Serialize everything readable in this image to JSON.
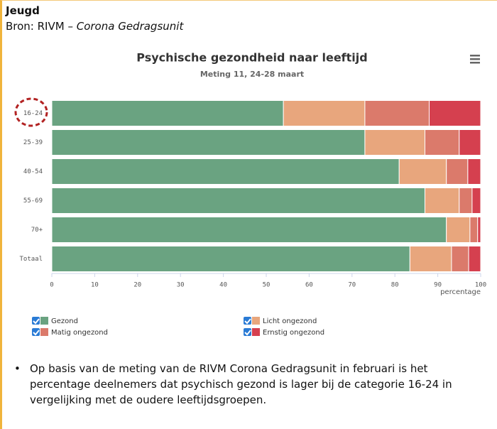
{
  "header": {
    "title": "Jeugd",
    "source": "Bron: RIVM –",
    "source_emphasis": "Corona Gedragsunit"
  },
  "chart_data": {
    "type": "bar",
    "orientation": "horizontal",
    "stacked": true,
    "title": "Psychische gezondheid naar leeftijd",
    "subtitle": "Meting 11, 24-28 maart",
    "categories": [
      "16-24",
      "25-39",
      "40-54",
      "55-69",
      "70+",
      "Totaal"
    ],
    "series": [
      {
        "name": "Gezond",
        "color": "#6aa381",
        "values": [
          54,
          73,
          81,
          87,
          92,
          83.5
        ]
      },
      {
        "name": "Licht ongezond",
        "color": "#e8a67d",
        "values": [
          19,
          14,
          11,
          8,
          5.5,
          9.7
        ]
      },
      {
        "name": "Matig ongezond",
        "color": "#db7a6b",
        "values": [
          15,
          8,
          5,
          3,
          1.8,
          4
        ]
      },
      {
        "name": "Ernstig ongezond",
        "color": "#d5404f",
        "values": [
          12,
          5,
          3,
          2,
          0.7,
          2.8
        ]
      }
    ],
    "xlim": [
      0,
      100
    ],
    "xticks": [
      0,
      10,
      20,
      30,
      40,
      50,
      60,
      70,
      80,
      90,
      100
    ],
    "xlabel": "percentage",
    "grid": false
  },
  "note": "Op basis van de meting van de RIVM Corona Gedragsunit in februari is het percentage deelnemers dat psychisch gezond is lager bij de categorie 16-24 in vergelijking met de oudere leeftijdsgroepen."
}
